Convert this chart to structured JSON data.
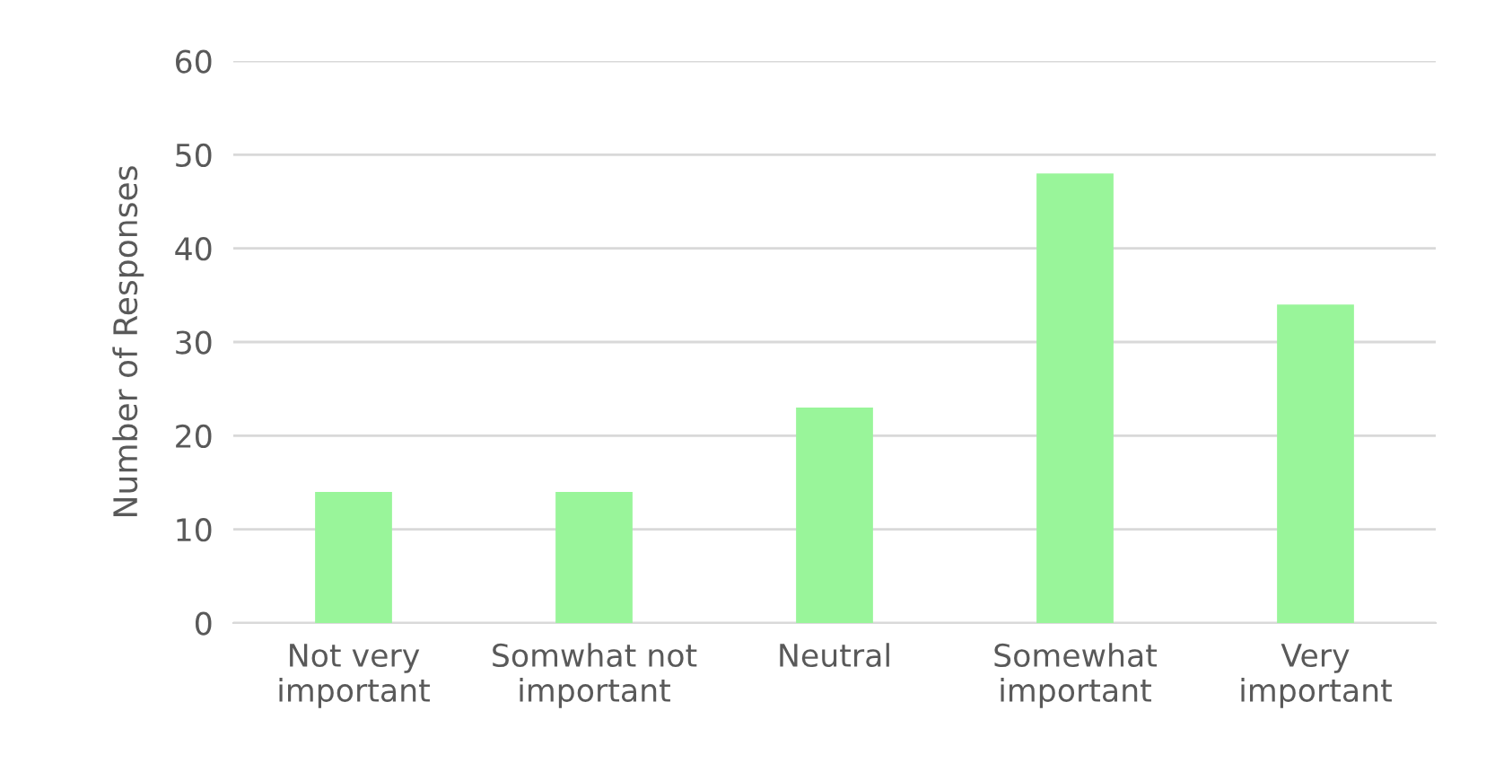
{
  "chart_data": {
    "type": "bar",
    "ylabel": "Number of Responses",
    "categories": [
      "Not very\nimportant",
      "Somwhat not\nimportant",
      "Neutral",
      "Somewhat\nimportant",
      "Very\nimportant"
    ],
    "values": [
      14,
      14,
      23,
      48,
      34
    ],
    "color": "#99f59a",
    "ylim": [
      0,
      60
    ],
    "yticks": [
      0,
      10,
      20,
      30,
      40,
      50,
      60
    ],
    "grid": "y",
    "legend": false
  }
}
